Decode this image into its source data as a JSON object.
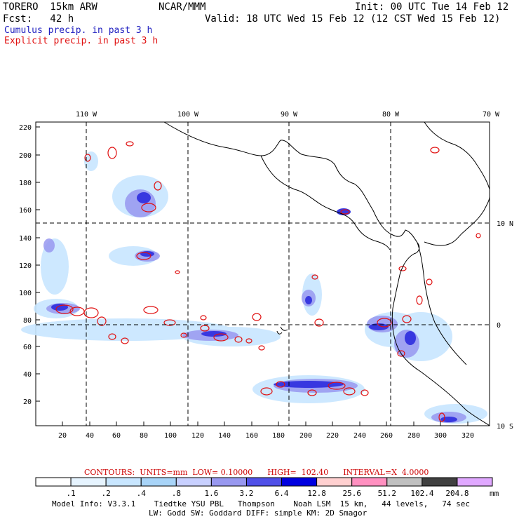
{
  "header": {
    "model": "TORERO  15km ARW",
    "org": "NCAR/MMM",
    "init": "Init: 00 UTC Tue 14 Feb 12",
    "fcst": "Fcst:   42 h",
    "valid": "Valid: 18 UTC Wed 15 Feb 12 (12 CST Wed 15 Feb 12)",
    "legend_cumulus": "Cumulus precip. in past 3 h",
    "legend_explicit": "Explicit precip. in past 3 h"
  },
  "map": {
    "lon_labels": [
      "110 W",
      "100 W",
      "90 W",
      "80 W",
      "70 W"
    ],
    "lat_labels": [
      "10 N",
      "0",
      "10 S"
    ],
    "y_ticks": [
      "220",
      "200",
      "180",
      "160",
      "140",
      "120",
      "100",
      "80",
      "60",
      "40",
      "20"
    ],
    "x_ticks": [
      "20",
      "40",
      "60",
      "80",
      "100",
      "120",
      "140",
      "160",
      "180",
      "200",
      "220",
      "240",
      "260",
      "280",
      "300",
      "320"
    ]
  },
  "contour_info": {
    "text": "CONTOURS:  UNITS=mm  LOW= 0.10000      HIGH=  102.40      INTERVAL=X  4.0000"
  },
  "colorbar": {
    "labels": [
      ".1",
      ".2",
      ".4",
      ".8",
      "1.6",
      "3.2",
      "6.4",
      "12.8",
      "25.6",
      "51.2",
      "102.4",
      "204.8"
    ],
    "unit": "mm",
    "colors": [
      "#ffffff",
      "#e6f4ff",
      "#c8e6ff",
      "#a8d4f8",
      "#c8d0ff",
      "#9898f0",
      "#5050e8",
      "#0000e0",
      "#ffd0d0",
      "#ff90c0",
      "#c0c0c0",
      "#404040",
      "#e0a8ff"
    ]
  },
  "footer": {
    "line1": "Model Info: V3.3.1    Tiedtke YSU PBL   Thompson    Noah LSM  15 km,   44 levels,   74 sec",
    "line2": "LW: Godd SW: Goddard DIFF: simple KM: 2D Smagor"
  }
}
